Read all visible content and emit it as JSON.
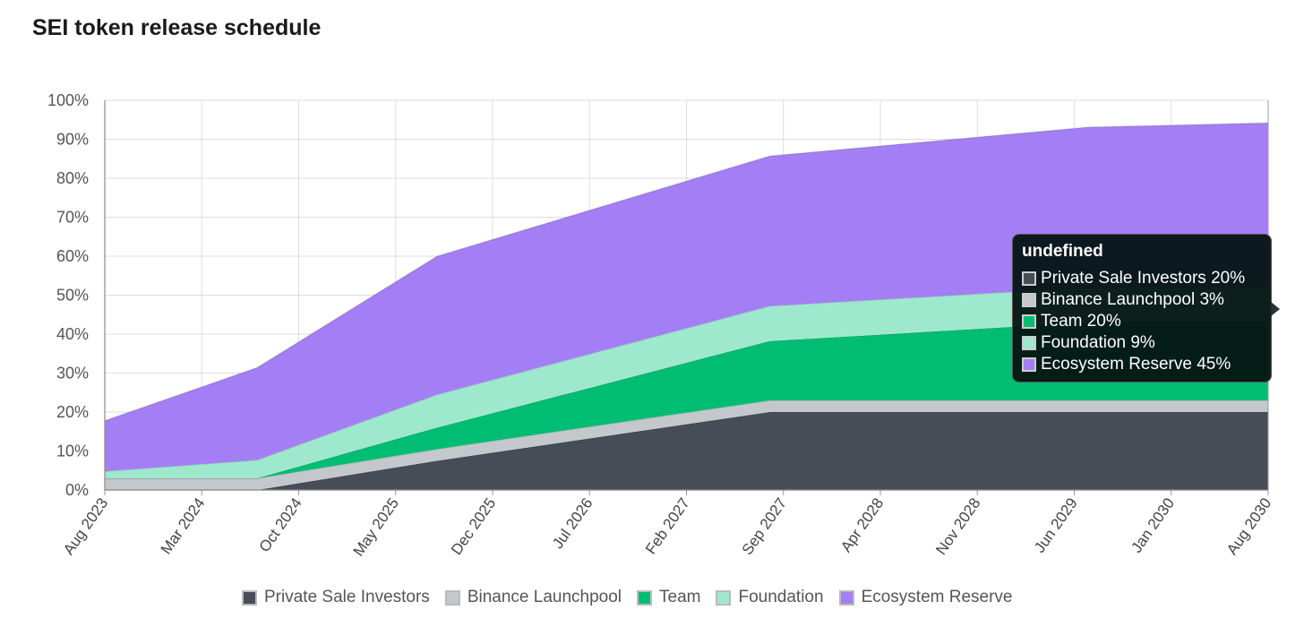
{
  "page": {
    "title": "SEI token release schedule"
  },
  "chart_data": {
    "type": "area",
    "stacked": true,
    "title": "SEI token release schedule",
    "xlabel": "",
    "ylabel": "",
    "ylim": [
      0,
      100
    ],
    "y_ticks": [
      "0%",
      "10%",
      "20%",
      "30%",
      "40%",
      "50%",
      "60%",
      "70%",
      "80%",
      "90%",
      "100%"
    ],
    "x_ticks": [
      "Aug 2023",
      "Mar 2024",
      "Oct 2024",
      "May 2025",
      "Dec 2025",
      "Jul 2026",
      "Feb 2027",
      "Sep 2027",
      "Apr 2028",
      "Nov 2028",
      "Jun 2029",
      "Jan 2030",
      "Aug 2030"
    ],
    "x": [
      "Aug 2023",
      "Jul 2024",
      "Aug 2025",
      "Aug 2027",
      "Jul 2029",
      "Aug 2030"
    ],
    "series": [
      {
        "name": "Private Sale Investors",
        "color": "#474d57",
        "values": [
          0,
          0,
          7.5,
          20,
          20,
          20
        ]
      },
      {
        "name": "Binance Launchpool",
        "color": "#c4c8cc",
        "values": [
          3,
          3,
          3,
          3,
          3,
          3
        ]
      },
      {
        "name": "Team",
        "color": "#00bd73",
        "values": [
          0,
          0,
          5.5,
          15.2,
          20,
          20
        ]
      },
      {
        "name": "Foundation",
        "color": "#9ee8cd",
        "values": [
          1.8,
          4.7,
          8.5,
          9,
          9,
          9
        ]
      },
      {
        "name": "Ecosystem Reserve",
        "color": "#a47ef5",
        "values": [
          13,
          23.7,
          35.5,
          38.5,
          41.1,
          42.2
        ]
      }
    ],
    "legend_position": "bottom-center",
    "grid": true
  },
  "tooltip": {
    "title": "undefined",
    "rows": [
      {
        "label": "Private Sale Investors 20%",
        "color": "#474d57"
      },
      {
        "label": "Binance Launchpool 3%",
        "color": "#c4c8cc"
      },
      {
        "label": "Team 20%",
        "color": "#00bd73"
      },
      {
        "label": "Foundation 9%",
        "color": "#9ee8cd"
      },
      {
        "label": "Ecosystem Reserve 45%",
        "color": "#a47ef5"
      }
    ]
  }
}
